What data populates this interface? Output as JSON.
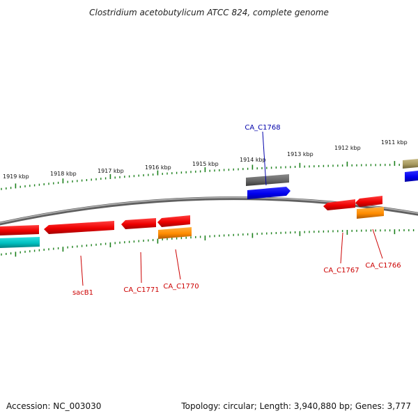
{
  "header": {
    "title": "Clostridium acetobutylicum ATCC 824, complete genome"
  },
  "footer": {
    "accession": "Accession: NC_003030",
    "summary": "Topology: circular; Length: 3,940,880 bp; Genes: 3,777"
  },
  "ticks": [
    "1919 kbp",
    "1918 kbp",
    "1917 kbp",
    "1916 kbp",
    "1915 kbp",
    "1914 kbp",
    "1913 kbp",
    "1912 kbp",
    "1911 kbp"
  ],
  "genes": {
    "upper": [
      "CA_C1768"
    ],
    "lower": [
      "sacB1",
      "CA_C1771",
      "CA_C1770",
      "CA_C1767",
      "CA_C1766"
    ]
  },
  "colors": {
    "backbone": "#7a7a7a",
    "tick": "#1a7f1a",
    "cds": "#ff0000",
    "rna_orange": "#ff8c00",
    "cyan": "#00c8c8",
    "blue": "#0000ff",
    "gray": "#666666",
    "olive": "#a89a60",
    "label_red": "#cc0000",
    "label_blue": "#0000aa"
  }
}
